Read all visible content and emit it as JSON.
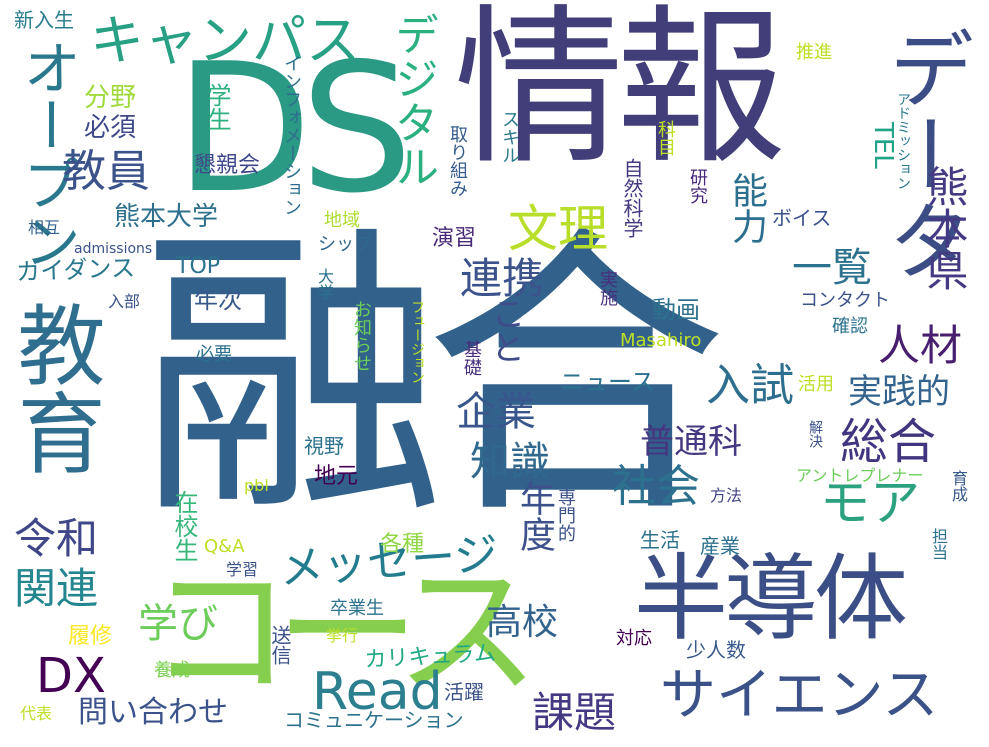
{
  "words": [
    {
      "t": "融合",
      "c": "#32628c"
    },
    {
      "t": "情報",
      "c": "#413e79"
    },
    {
      "t": "DS",
      "c": "#2b9a85"
    },
    {
      "t": "コース",
      "c": "#86cf4e"
    },
    {
      "t": "半導体",
      "c": "#3b4f86"
    },
    {
      "t": "データ",
      "c": "#3c4c85"
    },
    {
      "t": "教育",
      "c": "#2f6e8e"
    },
    {
      "t": "キャンパス",
      "c": "#27a083"
    },
    {
      "t": "オープン",
      "c": "#2a788e"
    },
    {
      "t": "サイエンス",
      "c": "#3b5288"
    },
    {
      "t": "メッセージ",
      "c": "#227c8d"
    },
    {
      "t": "デジタル",
      "c": "#2bb07f"
    },
    {
      "t": "熊本県",
      "c": "#443a83"
    },
    {
      "t": "総合",
      "c": "#42357f"
    },
    {
      "t": "Read",
      "c": "#2b7f8e"
    },
    {
      "t": "文理",
      "c": "#b8de29"
    },
    {
      "t": "能力",
      "c": "#2d6f8e"
    },
    {
      "t": "教員",
      "c": "#3b528b"
    },
    {
      "t": "連携",
      "c": "#3b528b"
    },
    {
      "t": "人材",
      "c": "#481e6e"
    },
    {
      "t": "実践的",
      "c": "#33638d"
    },
    {
      "t": "一覧",
      "c": "#2c728e"
    },
    {
      "t": "こと",
      "c": "#3e4c8a"
    },
    {
      "t": "入試",
      "c": "#2e6e8e"
    },
    {
      "t": "企業",
      "c": "#39568c"
    },
    {
      "t": "知識",
      "c": "#31688e"
    },
    {
      "t": "普通科",
      "c": "#453781"
    },
    {
      "t": "社会",
      "c": "#2c728e"
    },
    {
      "t": "年度",
      "c": "#3c508b"
    },
    {
      "t": "モア",
      "c": "#2ca17f"
    },
    {
      "t": "令和",
      "c": "#3f4788"
    },
    {
      "t": "関連",
      "c": "#24868e"
    },
    {
      "t": "学び",
      "c": "#6ccd5a"
    },
    {
      "t": "DX",
      "c": "#440154"
    },
    {
      "t": "高校",
      "c": "#33628d"
    },
    {
      "t": "課題",
      "c": "#443983"
    },
    {
      "t": "問い合わせ",
      "c": "#3b528b"
    },
    {
      "t": "熊本大学",
      "c": "#2d708e"
    },
    {
      "t": "分野",
      "c": "#9fda3a"
    },
    {
      "t": "必須",
      "c": "#3e4989"
    },
    {
      "t": "学生",
      "c": "#2cb17e"
    },
    {
      "t": "懇親会",
      "c": "#3e4a89"
    },
    {
      "t": "新入生",
      "c": "#287c8e"
    },
    {
      "t": "インフォメーション",
      "c": "#2e6f8e"
    },
    {
      "t": "取り組み",
      "c": "#365c8d"
    },
    {
      "t": "スキル",
      "c": "#2a788e"
    },
    {
      "t": "自然科学",
      "c": "#453781"
    },
    {
      "t": "研究",
      "c": "#482878"
    },
    {
      "t": "科目",
      "c": "#bddf26"
    },
    {
      "t": "推進",
      "c": "#bddf26"
    },
    {
      "t": "TEL",
      "c": "#20a386"
    },
    {
      "t": "アドミッション",
      "c": "#2a788e"
    },
    {
      "t": "ボイス",
      "c": "#3b528b"
    },
    {
      "t": "ガイダンス",
      "c": "#2a788e"
    },
    {
      "t": "TOP",
      "c": "#2c728e"
    },
    {
      "t": "年次",
      "c": "#38598c"
    },
    {
      "t": "演習",
      "c": "#482777"
    },
    {
      "t": "地域",
      "c": "#addc30"
    },
    {
      "t": "シップ",
      "c": "#31688e"
    },
    {
      "t": "相互",
      "c": "#33638d"
    },
    {
      "t": "admissions",
      "c": "#3b528b"
    },
    {
      "t": "入部",
      "c": "#3b528b"
    },
    {
      "t": "大学",
      "c": "#2c728e"
    },
    {
      "t": "お知らせ",
      "c": "#6ccd5a"
    },
    {
      "t": "フュージョン",
      "c": "#bddf26"
    },
    {
      "t": "基礎",
      "c": "#472c7a"
    },
    {
      "t": "実施",
      "c": "#46307e"
    },
    {
      "t": "コンタクト",
      "c": "#3b528b"
    },
    {
      "t": "確認",
      "c": "#2c728e"
    },
    {
      "t": "動画",
      "c": "#2c728e"
    },
    {
      "t": "Masahiro",
      "c": "#bddf26"
    },
    {
      "t": "ニュース",
      "c": "#2c728e"
    },
    {
      "t": "必要",
      "c": "#2c728e"
    },
    {
      "t": "活用",
      "c": "#bddf26"
    },
    {
      "t": "視野",
      "c": "#2c728e"
    },
    {
      "t": "地元",
      "c": "#440154"
    },
    {
      "t": "在校生",
      "c": "#35b779"
    },
    {
      "t": "pbl",
      "c": "#bddf26"
    },
    {
      "t": "専門的",
      "c": "#3b528b"
    },
    {
      "t": "方法",
      "c": "#414487"
    },
    {
      "t": "解決",
      "c": "#3b528b"
    },
    {
      "t": "アントレプレナー",
      "c": "#6ccd5a"
    },
    {
      "t": "育成",
      "c": "#38598c"
    },
    {
      "t": "各種",
      "c": "#8fd744"
    },
    {
      "t": "生活",
      "c": "#2c728e"
    },
    {
      "t": "産業",
      "c": "#2c728e"
    },
    {
      "t": "Q&A",
      "c": "#bddf26"
    },
    {
      "t": "学習",
      "c": "#3b528b"
    },
    {
      "t": "担当",
      "c": "#2c728e"
    },
    {
      "t": "履修",
      "c": "#fde725"
    },
    {
      "t": "卒業生",
      "c": "#2c728e"
    },
    {
      "t": "対応",
      "c": "#440154"
    },
    {
      "t": "カリキュラム",
      "c": "#22a884"
    },
    {
      "t": "少人数",
      "c": "#38598c"
    },
    {
      "t": "送信",
      "c": "#3b528b"
    },
    {
      "t": "挙行",
      "c": "#bddf26"
    },
    {
      "t": "養成",
      "c": "#7ad151"
    },
    {
      "t": "活躍",
      "c": "#3b528b"
    },
    {
      "t": "代表",
      "c": "#bddf26"
    },
    {
      "t": "コミュニケーション",
      "c": "#2c728e"
    }
  ]
}
